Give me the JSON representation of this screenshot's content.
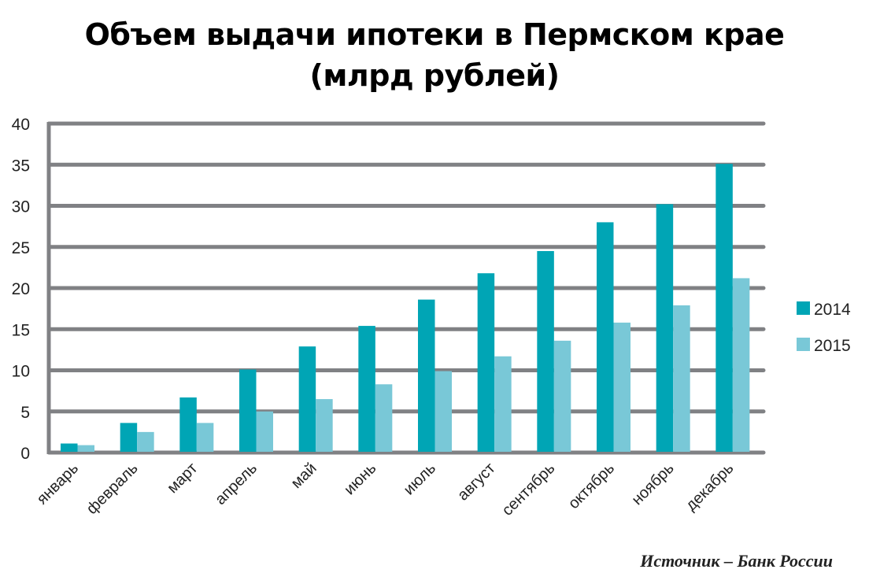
{
  "chart_data": {
    "type": "bar",
    "title": "Объем выдачи ипотеки в Пермском крае",
    "subtitle": "(млрд рублей)",
    "categories": [
      "январь",
      "февраль",
      "март",
      "апрель",
      "май",
      "июнь",
      "июль",
      "август",
      "сентябрь",
      "октябрь",
      "ноябрь",
      "декабрь"
    ],
    "series": [
      {
        "name": "2014",
        "color": "#00A5B5",
        "values": [
          1.1,
          3.6,
          6.7,
          10.1,
          12.9,
          15.4,
          18.6,
          21.8,
          24.5,
          28.0,
          30.2,
          35.1
        ]
      },
      {
        "name": "2015",
        "color": "#79C8D7",
        "values": [
          0.9,
          2.5,
          3.6,
          5.0,
          6.5,
          8.3,
          9.9,
          11.7,
          13.6,
          15.8,
          17.9,
          21.2
        ]
      }
    ],
    "ylim": [
      0,
      40
    ],
    "yticks": [
      0,
      5,
      10,
      15,
      20,
      25,
      30,
      35,
      40
    ],
    "grid": true,
    "grid_color": "#808184",
    "legend_position": "right",
    "xlabel": "",
    "ylabel": ""
  },
  "source": "Источник – Банк России"
}
